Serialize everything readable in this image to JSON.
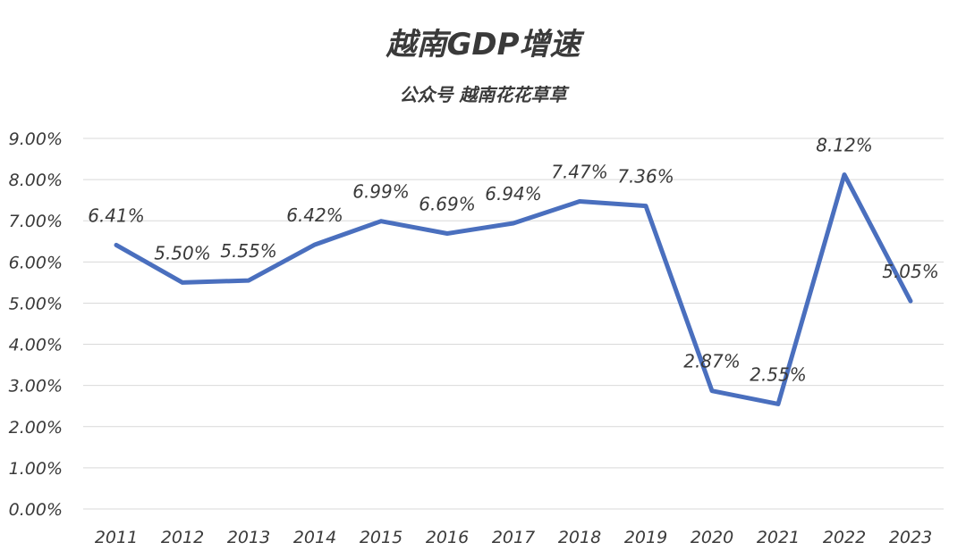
{
  "chart_data": {
    "type": "line",
    "title": "越南GDP增速",
    "subtitle": "公众号 越南花花草草",
    "xlabel": "",
    "ylabel": "",
    "ylim": [
      0,
      9
    ],
    "y_ticks": [
      "0.00%",
      "1.00%",
      "2.00%",
      "3.00%",
      "4.00%",
      "5.00%",
      "6.00%",
      "7.00%",
      "8.00%",
      "9.00%"
    ],
    "grid": true,
    "legend": "none",
    "series_color": "#4a6fbe",
    "categories": [
      "2011",
      "2012",
      "2013",
      "2014",
      "2015",
      "2016",
      "2017",
      "2018",
      "2019",
      "2020",
      "2021",
      "2022",
      "2023"
    ],
    "series": [
      {
        "values": [
          6.41,
          5.5,
          5.55,
          6.42,
          6.99,
          6.69,
          6.94,
          7.47,
          7.36,
          2.87,
          2.55,
          8.12,
          5.05
        ],
        "labels": [
          "6.41%",
          "5.50%",
          "5.55%",
          "6.42%",
          "6.99%",
          "6.69%",
          "6.94%",
          "7.47%",
          "7.36%",
          "2.87%",
          "2.55%",
          "8.12%",
          "5.05%"
        ]
      }
    ]
  }
}
